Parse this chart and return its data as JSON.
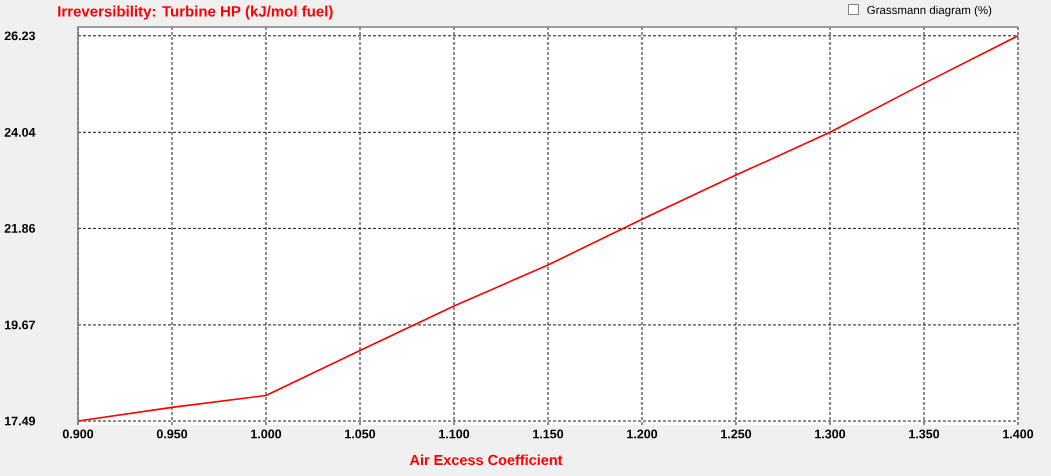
{
  "chart_data": {
    "type": "line",
    "title": "Irreversibility: Turbine HP (kJ/mol fuel)",
    "xlabel": "Air Excess Coefficient",
    "x": [
      0.9,
      0.95,
      1.0,
      1.05,
      1.1,
      1.15,
      1.2,
      1.25,
      1.3,
      1.35,
      1.4
    ],
    "series": [
      {
        "color": "#ff0000",
        "values": [
          17.49,
          17.8,
          18.07,
          19.09,
          20.1,
          21.03,
          22.07,
          23.07,
          24.04,
          25.15,
          26.23
        ]
      }
    ],
    "xlim": [
      0.9,
      1.4
    ],
    "ylim": [
      17.4,
      26.43
    ],
    "xticks": [
      {
        "value": 0.9,
        "label": "0.900"
      },
      {
        "value": 0.95,
        "label": "0.950"
      },
      {
        "value": 1.0,
        "label": "1.000"
      },
      {
        "value": 1.05,
        "label": "1.050"
      },
      {
        "value": 1.1,
        "label": "1.100"
      },
      {
        "value": 1.15,
        "label": "1.150"
      },
      {
        "value": 1.2,
        "label": "1.200"
      },
      {
        "value": 1.25,
        "label": "1.250"
      },
      {
        "value": 1.3,
        "label": "1.300"
      },
      {
        "value": 1.35,
        "label": "1.350"
      },
      {
        "value": 1.4,
        "label": "1.400"
      }
    ],
    "yticks": [
      17.49,
      19.67,
      21.86,
      24.04,
      26.23
    ],
    "grid": true,
    "marker": "none",
    "line_style": "solid",
    "annotations": [
      "Grassmann diagram (%)"
    ]
  }
}
